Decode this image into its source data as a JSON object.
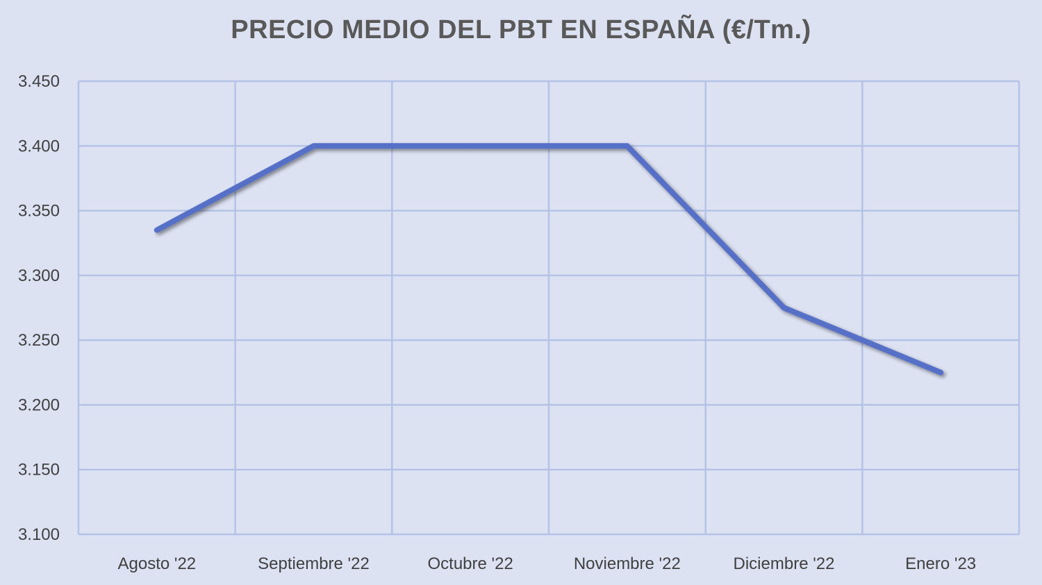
{
  "chart_data": {
    "type": "line",
    "title": "PRECIO MEDIO DEL PBT EN ESPAÑA (€/Tm.)",
    "xlabel": "",
    "ylabel": "",
    "categories": [
      "Agosto '22",
      "Septiembre '22",
      "Octubre '22",
      "Noviembre '22",
      "Diciembre '22",
      "Enero '23"
    ],
    "series": [
      {
        "values": [
          3335,
          3400,
          3400,
          3400,
          3275,
          3225
        ],
        "color": "#5470c6"
      }
    ],
    "ylim": [
      3100,
      3450
    ],
    "y_ticks": [
      3100,
      3150,
      3200,
      3250,
      3300,
      3350,
      3400,
      3450
    ],
    "y_tick_labels": [
      "3.100",
      "3.150",
      "3.200",
      "3.250",
      "3.300",
      "3.350",
      "3.400",
      "3.450"
    ],
    "grid": true,
    "legend": "none",
    "colors": {
      "background": "#dde2f3",
      "grid": "#b4c2e6",
      "line": "#5470c6",
      "title": "#595959",
      "labels": "#404040"
    }
  }
}
